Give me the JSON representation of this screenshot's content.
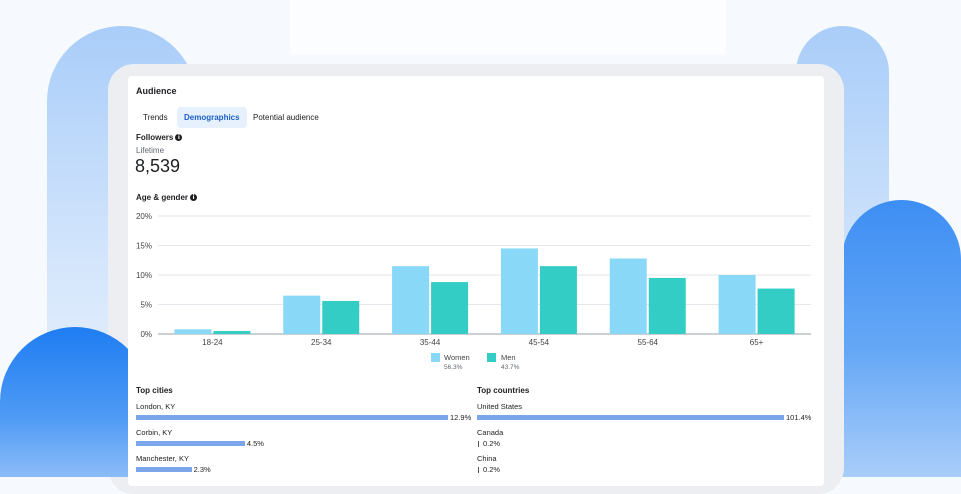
{
  "panel": {
    "title": "Audience"
  },
  "tabs": [
    {
      "label": "Trends",
      "active": false
    },
    {
      "label": "Demographics",
      "active": true
    },
    {
      "label": "Potential audience",
      "active": false
    }
  ],
  "followers": {
    "heading": "Followers",
    "sub": "Lifetime",
    "value": "8,539"
  },
  "age_gender": {
    "heading": "Age & gender"
  },
  "colors": {
    "women": "#8ad8f8",
    "men": "#33cdc6",
    "bar": "#7ca6ea",
    "active_tab_text": "#1b5fc4"
  },
  "chart_data": {
    "type": "bar",
    "categories": [
      "18-24",
      "25-34",
      "35-44",
      "45-54",
      "55-64",
      "65+"
    ],
    "series": [
      {
        "name": "Women",
        "share": "56.3%",
        "values": [
          0.8,
          6.5,
          11.5,
          14.5,
          12.8,
          10.0
        ]
      },
      {
        "name": "Men",
        "share": "43.7%",
        "values": [
          0.5,
          5.6,
          8.8,
          11.5,
          9.5,
          7.7
        ]
      }
    ],
    "y_ticks": [
      "0%",
      "5%",
      "10%",
      "15%",
      "20%"
    ],
    "ylim": [
      0,
      20
    ],
    "grid": true,
    "legend": "bottom-center"
  },
  "top_cities": {
    "heading": "Top cities",
    "max": 12.9,
    "rows": [
      {
        "name": "London, KY",
        "value": 12.9,
        "label": "12.9%"
      },
      {
        "name": "Corbin, KY",
        "value": 4.5,
        "label": "4.5%"
      },
      {
        "name": "Manchester, KY",
        "value": 2.3,
        "label": "2.3%"
      }
    ]
  },
  "top_countries": {
    "heading": "Top countries",
    "max": 101.4,
    "rows": [
      {
        "name": "United States",
        "value": 101.4,
        "label": "101.4%"
      },
      {
        "name": "Canada",
        "value": 0.2,
        "label": "0.2%"
      },
      {
        "name": "China",
        "value": 0.2,
        "label": "0.2%"
      }
    ]
  }
}
